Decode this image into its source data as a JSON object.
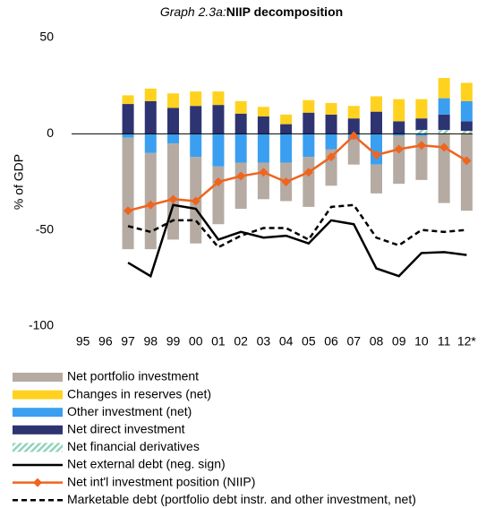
{
  "chart_data": {
    "type": "bar",
    "title_label": "Graph 2.3a:",
    "title": "NIIP decomposition",
    "y_label": "% of GDP",
    "categories": [
      "95",
      "96",
      "97",
      "98",
      "99",
      "00",
      "01",
      "02",
      "03",
      "04",
      "05",
      "06",
      "07",
      "08",
      "09",
      "10",
      "11",
      "12*"
    ],
    "ylim": [
      -100,
      50
    ],
    "yticks": [
      50,
      0,
      -50,
      -100
    ],
    "series": [
      {
        "name": "Net portfolio investment",
        "type": "bar",
        "color": "#b5aba2",
        "values": [
          null,
          null,
          -58,
          -50,
          -50,
          -45,
          -30,
          -24,
          -19,
          -20,
          -26,
          -19,
          -13,
          -15,
          -25,
          -23,
          -36,
          -40
        ]
      },
      {
        "name": "Changes in reserves (net)",
        "type": "bar",
        "color": "#ffd21f",
        "values": [
          null,
          null,
          4.5,
          6.5,
          7.5,
          7.5,
          7,
          6.5,
          5,
          5,
          6.5,
          6,
          6.5,
          8,
          11.5,
          10,
          10.5,
          9.5
        ]
      },
      {
        "name": "Other investment (net)",
        "type": "bar",
        "color": "#3a9ff0",
        "values": [
          null,
          null,
          -2,
          -10,
          -5,
          -12,
          -17,
          -15,
          -15,
          -15,
          -12,
          -8,
          -3,
          -16,
          -1,
          -1,
          8.5,
          10.5
        ]
      },
      {
        "name": "Net direct investment",
        "type": "bar",
        "color": "#2e3471",
        "values": [
          null,
          null,
          15.5,
          17,
          13.5,
          14.5,
          15,
          10.5,
          9,
          5,
          11,
          10,
          8,
          11.5,
          6.5,
          6,
          8,
          5
        ]
      },
      {
        "name": "Net financial derivatives",
        "type": "bar",
        "color": "#8fd3bd",
        "pattern": "hatch",
        "values": [
          null,
          null,
          null,
          null,
          null,
          null,
          null,
          null,
          null,
          null,
          null,
          null,
          null,
          null,
          null,
          2,
          2,
          1.5
        ]
      },
      {
        "name": "Net external debt (neg. sign)",
        "type": "line",
        "color": "#000000",
        "dash": "solid",
        "values": [
          null,
          null,
          -67,
          -74,
          -37,
          -39,
          -55,
          -51,
          -54,
          -53,
          -57,
          -45,
          -47,
          -70,
          -74,
          -62,
          -61.5,
          -63
        ]
      },
      {
        "name": "Net int'l investment position (NIIP)",
        "type": "line",
        "color": "#f0641e",
        "dash": "solid",
        "marker": "diamond",
        "values": [
          null,
          null,
          -40,
          -37,
          -34,
          -35,
          -25,
          -22,
          -20,
          -25,
          -20,
          -12,
          -1,
          -11,
          -8,
          -6,
          -7,
          -14
        ]
      },
      {
        "name": "Marketable debt (portfolio debt instr. and other investment, net)",
        "type": "line",
        "color": "#000000",
        "dash": "dashed",
        "values": [
          null,
          null,
          -48,
          -51,
          -45,
          -45,
          -59,
          -53,
          -49,
          -49,
          -55,
          -38,
          -37,
          -54,
          -58,
          -50,
          -51,
          -50
        ]
      }
    ]
  }
}
